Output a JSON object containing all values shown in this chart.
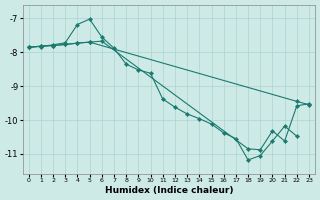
{
  "xlabel": "Humidex (Indice chaleur)",
  "xlim": [
    -0.5,
    23.5
  ],
  "ylim": [
    -11.6,
    -6.6
  ],
  "yticks": [
    -7,
    -8,
    -9,
    -10,
    -11
  ],
  "xticks": [
    0,
    1,
    2,
    3,
    4,
    5,
    6,
    7,
    8,
    9,
    10,
    11,
    12,
    13,
    14,
    15,
    16,
    17,
    18,
    19,
    20,
    21,
    22,
    23
  ],
  "bg_color": "#ceeae7",
  "grid_color": "#aed4d0",
  "line_color": "#1a7a6e",
  "series": [
    {
      "x": [
        0,
        1,
        2,
        3,
        4,
        5,
        22,
        23
      ],
      "y": [
        -7.85,
        -7.82,
        -7.8,
        -7.77,
        -7.73,
        -7.7,
        -9.45,
        -9.55
      ]
    },
    {
      "x": [
        0,
        1,
        2,
        3,
        4,
        5,
        6,
        7,
        8,
        9,
        10,
        11,
        12,
        13,
        14,
        15,
        16,
        17,
        18,
        19,
        20,
        21,
        22
      ],
      "y": [
        -7.85,
        -7.83,
        -7.78,
        -7.72,
        -7.18,
        -7.02,
        -7.55,
        -7.88,
        -8.35,
        -8.52,
        -8.62,
        -9.38,
        -9.62,
        -9.82,
        -9.96,
        -10.12,
        -10.38,
        -10.55,
        -11.18,
        -11.05,
        -10.62,
        -10.18,
        -10.48
      ]
    },
    {
      "x": [
        0,
        1,
        2,
        3,
        4,
        5,
        6,
        18,
        19,
        20,
        21,
        22,
        23
      ],
      "y": [
        -7.85,
        -7.82,
        -7.8,
        -7.77,
        -7.73,
        -7.7,
        -7.67,
        -10.85,
        -10.88,
        -10.32,
        -10.62,
        -9.58,
        -9.52
      ]
    }
  ]
}
